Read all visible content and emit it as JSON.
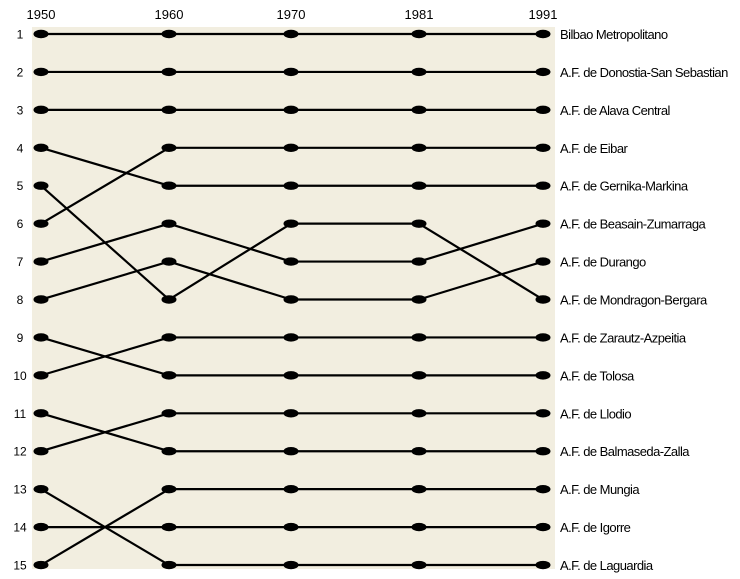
{
  "colors": {
    "plot_background": "#f2eee0",
    "line": "#000000",
    "node": "#000000"
  },
  "chart_data": {
    "type": "line",
    "title": "",
    "xlabel": "",
    "ylabel": "",
    "x": [
      "1950",
      "1960",
      "1970",
      "1981",
      "1991"
    ],
    "rank_axis_labels": [
      "1",
      "2",
      "3",
      "4",
      "5",
      "6",
      "7",
      "8",
      "9",
      "10",
      "11",
      "12",
      "13",
      "14",
      "15"
    ],
    "ylim": [
      1,
      15
    ],
    "y_inverted": true,
    "grid": false,
    "legend": "none",
    "series": [
      {
        "name": "Bilbao Metropolitano",
        "values": [
          1,
          1,
          1,
          1,
          1
        ]
      },
      {
        "name": "A.F. de Donostia-San Sebastian",
        "values": [
          2,
          2,
          2,
          2,
          2
        ]
      },
      {
        "name": "A.F. de Alava Central",
        "values": [
          3,
          3,
          3,
          3,
          3
        ]
      },
      {
        "name": "A.F. de Eibar",
        "values": [
          6,
          4,
          4,
          4,
          4
        ]
      },
      {
        "name": "A.F. de Gernika-Markina",
        "values": [
          4,
          5,
          5,
          5,
          5
        ]
      },
      {
        "name": "A.F. de Beasain-Zumarraga",
        "values": [
          7,
          6,
          7,
          7,
          6
        ]
      },
      {
        "name": "A.F. de Durango",
        "values": [
          8,
          7,
          8,
          8,
          7
        ]
      },
      {
        "name": "A.F. de Mondragon-Bergara",
        "values": [
          5,
          8,
          6,
          6,
          8
        ]
      },
      {
        "name": "A.F. de Zarautz-Azpeitia",
        "values": [
          10,
          9,
          9,
          9,
          9
        ]
      },
      {
        "name": "A.F. de Tolosa",
        "values": [
          9,
          10,
          10,
          10,
          10
        ]
      },
      {
        "name": "A.F. de Llodio",
        "values": [
          12,
          11,
          11,
          11,
          11
        ]
      },
      {
        "name": "A.F. de Balmaseda-Zalla",
        "values": [
          11,
          12,
          12,
          12,
          12
        ]
      },
      {
        "name": "A.F. de Mungia",
        "values": [
          15,
          13,
          13,
          13,
          13
        ]
      },
      {
        "name": "A.F. de Igorre",
        "values": [
          14,
          14,
          14,
          14,
          14
        ]
      },
      {
        "name": "A.F. de Laguardia",
        "values": [
          13,
          15,
          15,
          15,
          15
        ]
      }
    ]
  }
}
